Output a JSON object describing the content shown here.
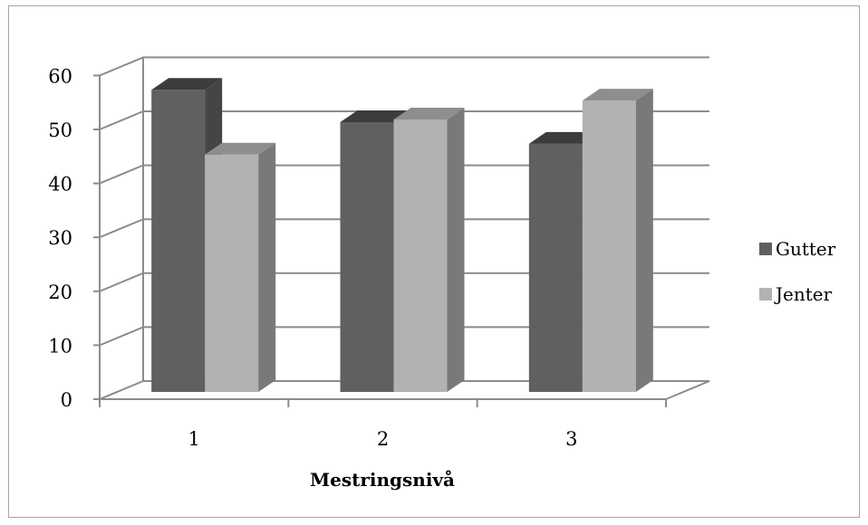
{
  "chart_data": {
    "type": "bar",
    "title": "",
    "xlabel": "Mestringsnivå",
    "ylabel": "",
    "categories": [
      "1",
      "2",
      "3"
    ],
    "series": [
      {
        "name": "Gutter",
        "values": [
          56,
          50,
          46
        ],
        "color": "#606060"
      },
      {
        "name": "Jenter",
        "values": [
          44,
          50.5,
          54
        ],
        "color": "#b2b2b2"
      }
    ],
    "ylim": [
      0,
      60
    ],
    "yticks": [
      "0",
      "10",
      "20",
      "30",
      "40",
      "50",
      "60"
    ],
    "grid": true,
    "legend_position": "right",
    "style": "3d-clustered-column"
  }
}
